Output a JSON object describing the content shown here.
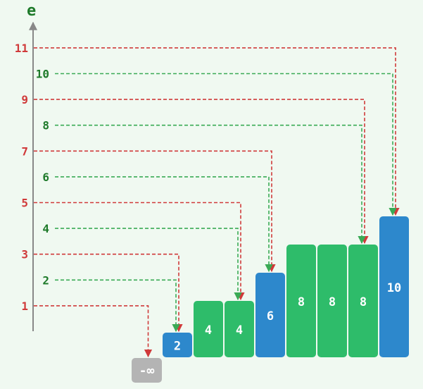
{
  "axis": {
    "label": "e"
  },
  "colors": {
    "red": "#d03a3a",
    "green": "#3aaa55",
    "green_label": "#1e7a2a",
    "blue_bar": "#2d88cc",
    "green_bar": "#2ebc6a",
    "neg_inf_box": "#b4b4b4",
    "axis": "#888888"
  },
  "ticks": [
    {
      "text": "11",
      "color": "red"
    },
    {
      "text": "10",
      "color": "green"
    },
    {
      "text": "9",
      "color": "red"
    },
    {
      "text": "8",
      "color": "green"
    },
    {
      "text": "7",
      "color": "red"
    },
    {
      "text": "6",
      "color": "green"
    },
    {
      "text": "5",
      "color": "red"
    },
    {
      "text": "4",
      "color": "green"
    },
    {
      "text": "3",
      "color": "red"
    },
    {
      "text": "2",
      "color": "green"
    },
    {
      "text": "1",
      "color": "red"
    }
  ],
  "neg_inf": {
    "label": "-∞"
  },
  "bars": [
    {
      "label": "2",
      "value": 2,
      "color": "blue"
    },
    {
      "label": "4",
      "value": 4,
      "color": "green"
    },
    {
      "label": "4",
      "value": 4,
      "color": "green"
    },
    {
      "label": "6",
      "value": 6,
      "color": "blue"
    },
    {
      "label": "8",
      "value": 8,
      "color": "green"
    },
    {
      "label": "8",
      "value": 8,
      "color": "green"
    },
    {
      "label": "8",
      "value": 8,
      "color": "green"
    },
    {
      "label": "10",
      "value": 10,
      "color": "blue"
    }
  ],
  "arrows": [
    {
      "from": "11",
      "to_bar": 7,
      "color": "red"
    },
    {
      "from": "10",
      "to_bar": 7,
      "color": "green"
    },
    {
      "from": "9",
      "to_bar": 6,
      "color": "red"
    },
    {
      "from": "8",
      "to_bar": 6,
      "color": "green"
    },
    {
      "from": "7",
      "to_bar": 3,
      "color": "red"
    },
    {
      "from": "6",
      "to_bar": 3,
      "color": "green"
    },
    {
      "from": "5",
      "to_bar": 2,
      "color": "red"
    },
    {
      "from": "4",
      "to_bar": 2,
      "color": "green"
    },
    {
      "from": "3",
      "to_bar": 0,
      "color": "red"
    },
    {
      "from": "2",
      "to_bar": 0,
      "color": "green"
    },
    {
      "from": "1",
      "to_bar": "neg_inf",
      "color": "red"
    }
  ]
}
